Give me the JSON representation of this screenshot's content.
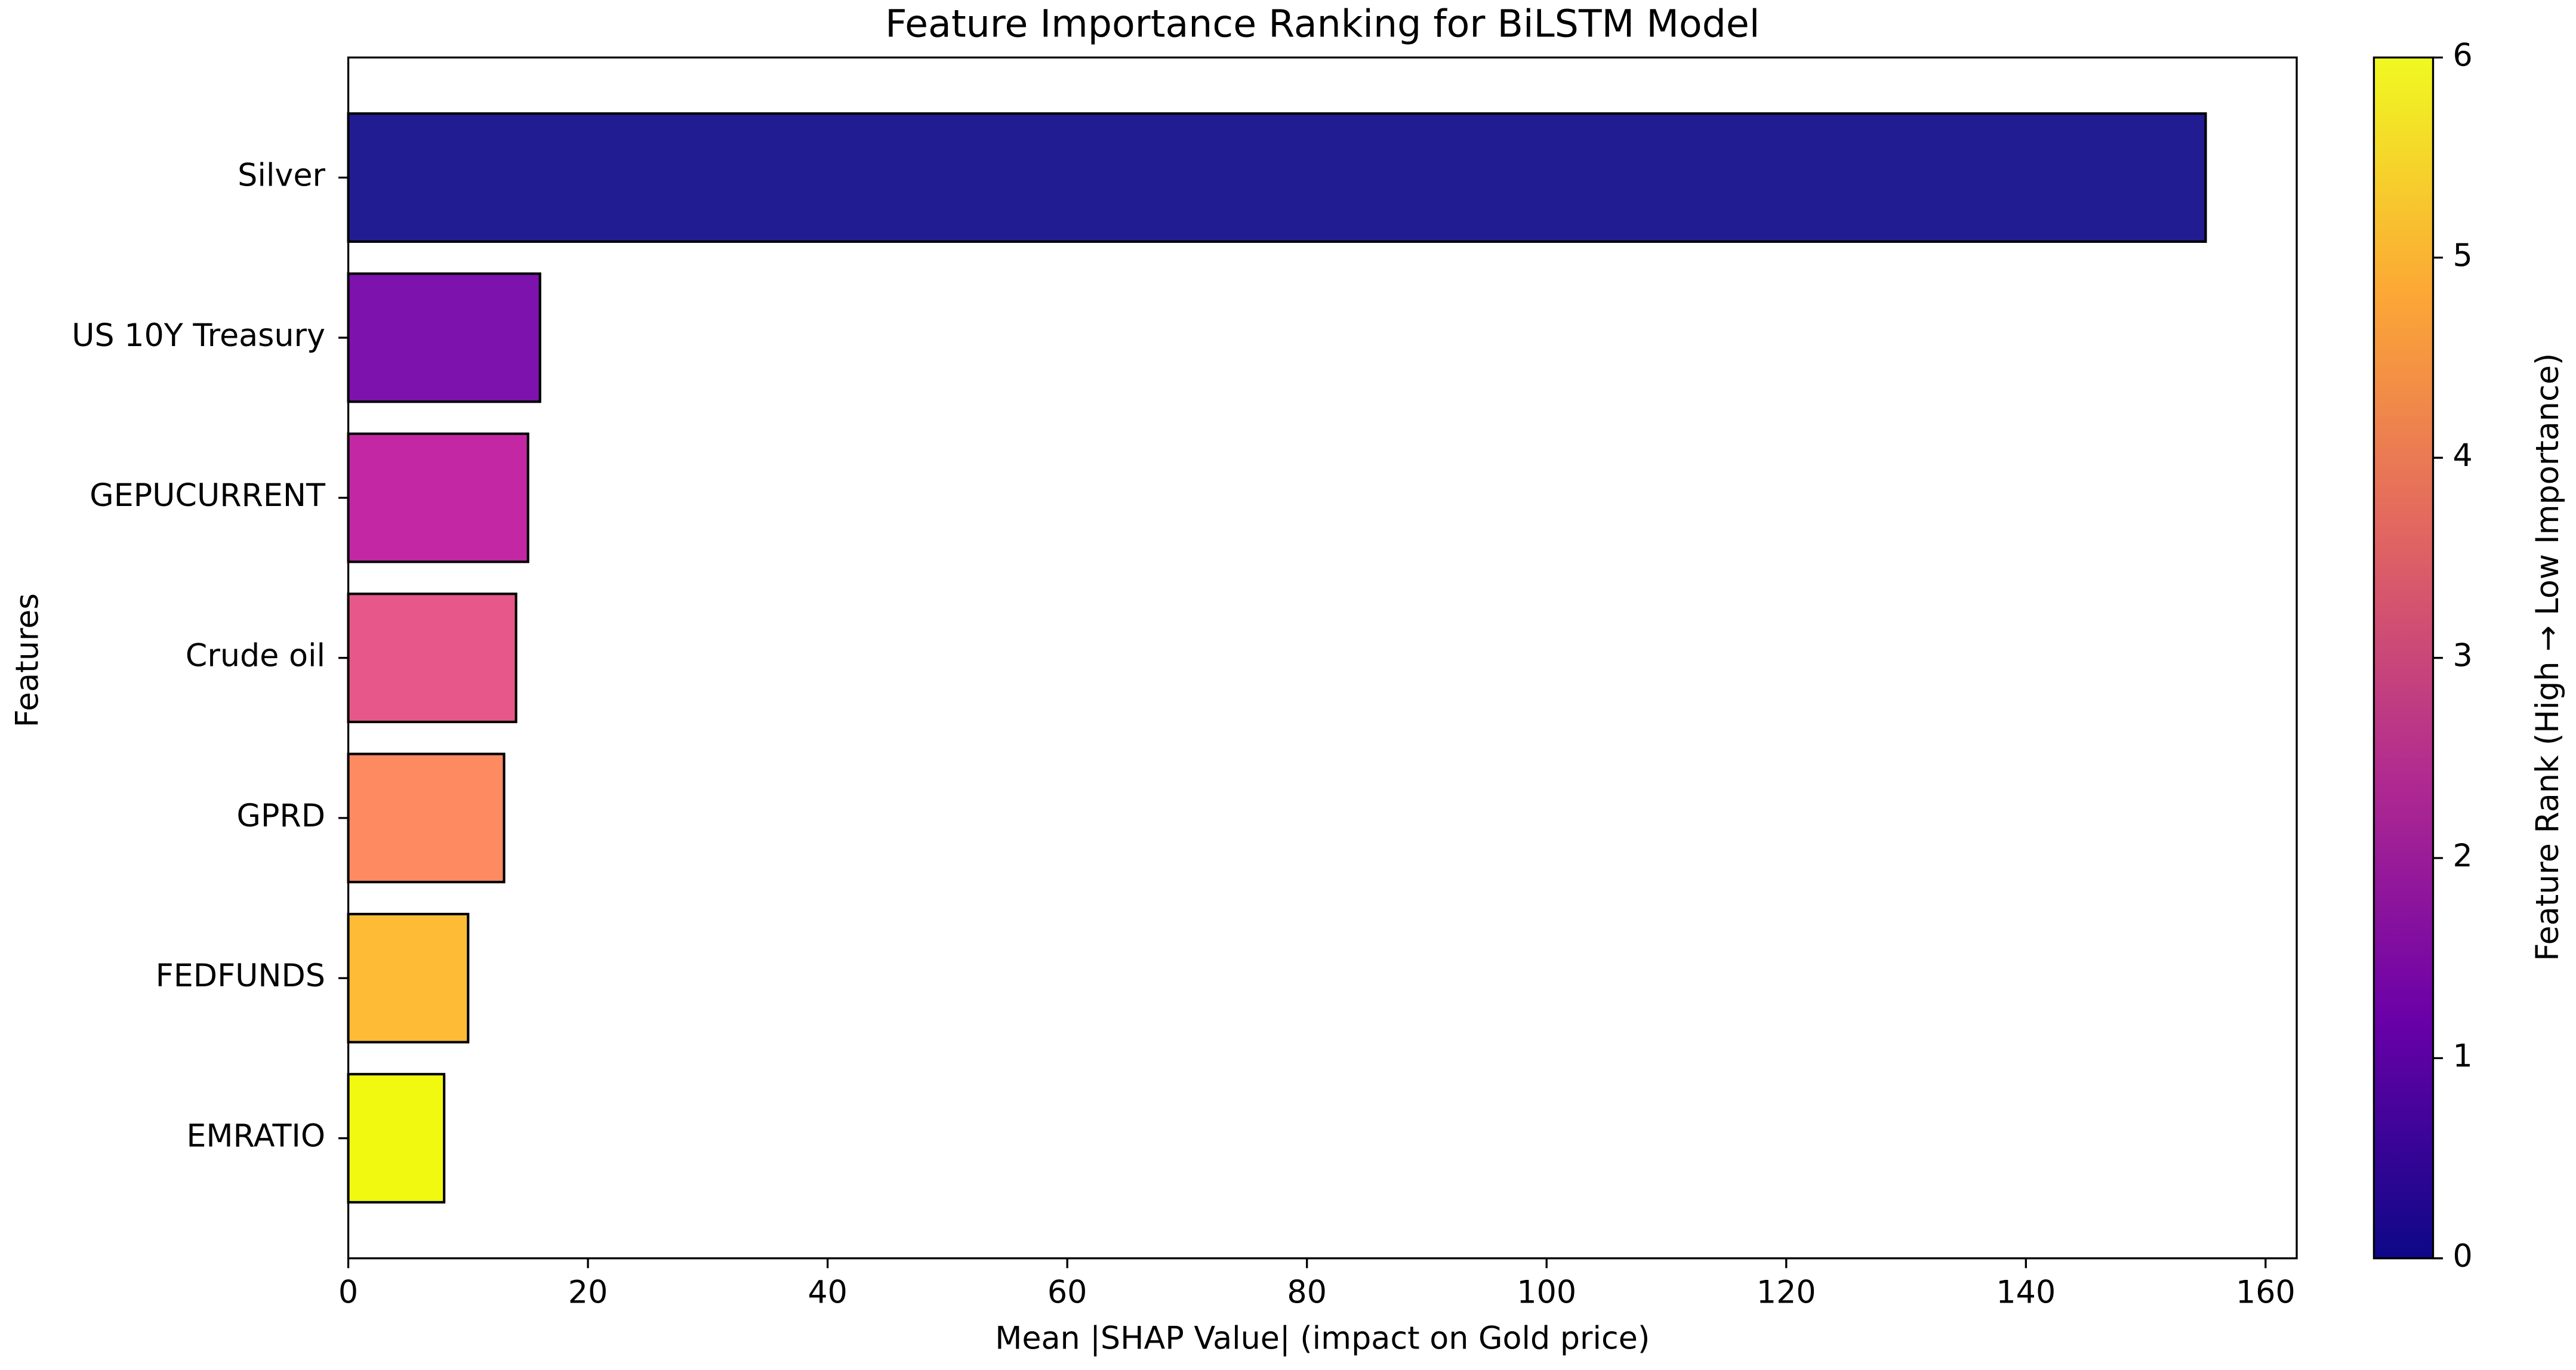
{
  "chart_data": {
    "type": "barh",
    "title": "Feature Importance Ranking for BiLSTM Model",
    "xlabel": "Mean |SHAP Value| (impact on Gold price)",
    "ylabel": "Features",
    "categories": [
      "Silver",
      "US 10Y Treasury",
      "GEPUCURRENT",
      "Crude oil",
      "GPRD",
      "FEDFUNDS",
      "EMRATIO"
    ],
    "values": [
      155,
      16,
      15,
      14,
      13,
      10,
      8
    ],
    "colors": [
      "#221c93",
      "#7e12ad",
      "#c327a4",
      "#e8578a",
      "#fd8a61",
      "#febb36",
      "#f0f90f"
    ],
    "xlim": [
      0,
      162.6
    ],
    "xticks": [
      0,
      20,
      40,
      60,
      80,
      100,
      120,
      140,
      160
    ],
    "grid": false,
    "colorbar": {
      "label": "Feature Rank (High → Low Importance)",
      "lim": [
        0,
        6
      ],
      "ticks": [
        0,
        1,
        2,
        3,
        4,
        5,
        6
      ],
      "colors": [
        "#0d0887",
        "#6a00a8",
        "#b12a90",
        "#e16462",
        "#fca636",
        "#f0f921"
      ]
    }
  }
}
